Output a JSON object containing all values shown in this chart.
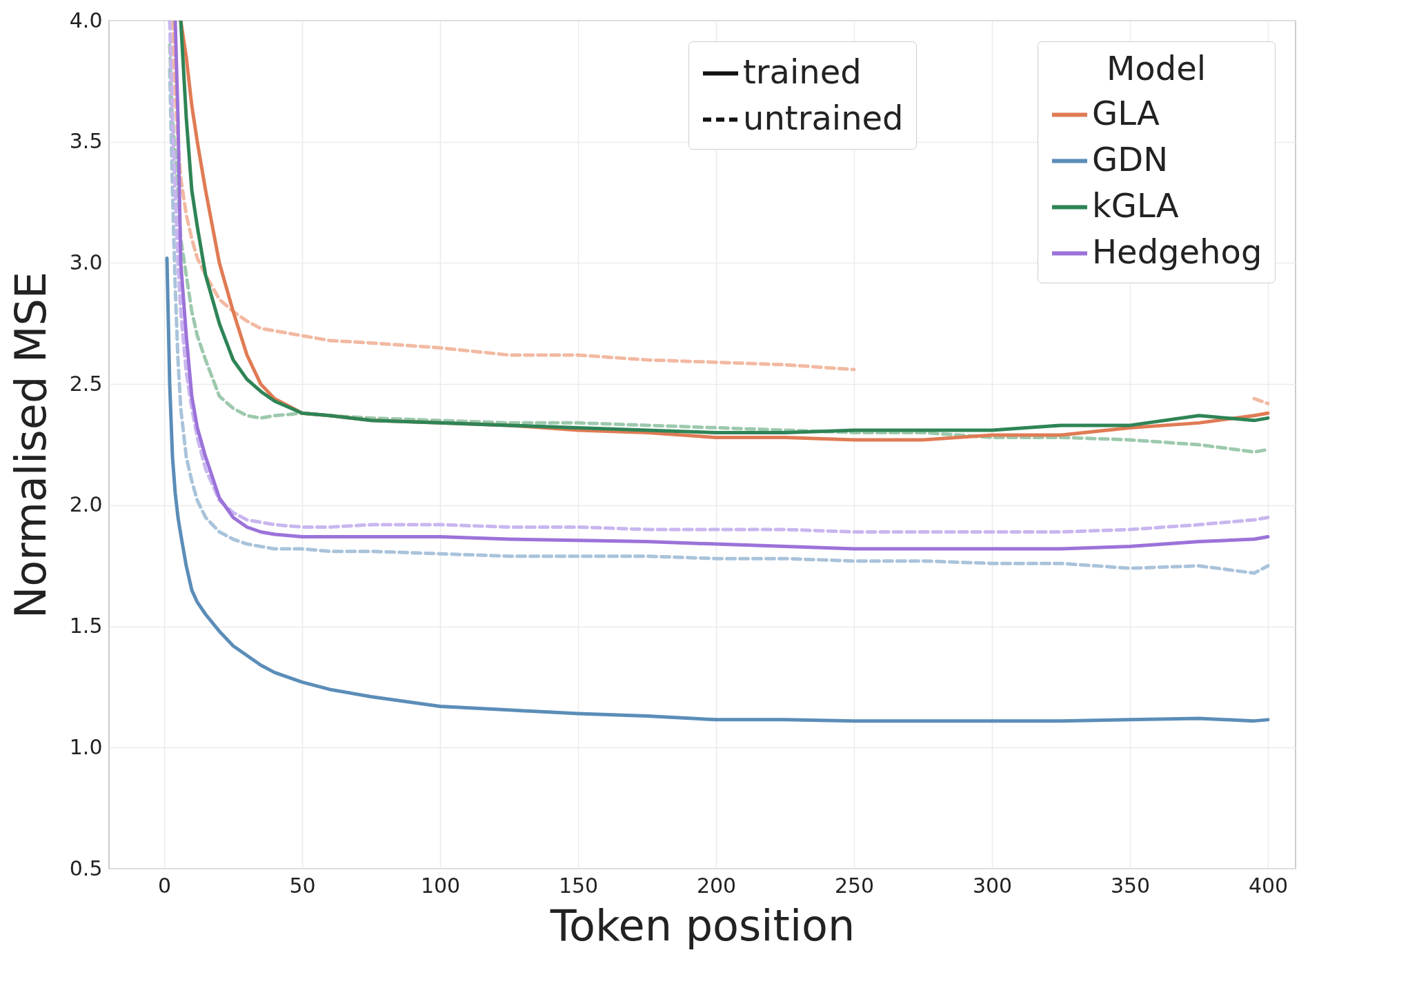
{
  "chart_data": {
    "type": "line",
    "xlabel": "Token position",
    "ylabel": "Normalised MSE",
    "legend_title": "Model",
    "legend": "top right",
    "grid": true,
    "xlim": [
      -20,
      410
    ],
    "ylim": [
      0.5,
      4.0
    ],
    "xticks": [
      0,
      50,
      100,
      150,
      200,
      250,
      300,
      350,
      400
    ],
    "yticks": [
      0.5,
      {
        "value": 1,
        "label": "1.0"
      },
      1.5,
      {
        "value": 2,
        "label": "2.0"
      },
      2.5,
      {
        "value": 3,
        "label": "3.0"
      },
      3.5,
      {
        "value": 4,
        "label": "4.0"
      }
    ],
    "annotations": [
      "trained",
      "untrained"
    ],
    "x": [
      1,
      2,
      3,
      4,
      5,
      6,
      8,
      10,
      12,
      15,
      20,
      25,
      30,
      35,
      40,
      50,
      60,
      75,
      100,
      125,
      150,
      175,
      200,
      225,
      250,
      275,
      300,
      325,
      350,
      375,
      395,
      400
    ],
    "series": [
      {
        "color": "#f2b9a2",
        "line_style": "dashed",
        "values": [
          null,
          null,
          4.0,
          3.7,
          3.5,
          3.35,
          3.2,
          3.1,
          3.02,
          2.95,
          2.85,
          2.8,
          2.76,
          2.73,
          2.72,
          2.7,
          2.68,
          2.67,
          2.65,
          2.62,
          2.62,
          2.6,
          2.59,
          2.58,
          2.56,
          null,
          null,
          null,
          null,
          null,
          2.44,
          2.42
        ]
      },
      {
        "color": "#a9c3da",
        "line_style": "dashed",
        "values": [
          null,
          3.8,
          3.3,
          2.9,
          2.6,
          2.4,
          2.2,
          2.1,
          2.02,
          1.95,
          1.89,
          1.86,
          1.84,
          1.83,
          1.82,
          1.82,
          1.81,
          1.81,
          1.8,
          1.79,
          1.79,
          1.79,
          1.78,
          1.78,
          1.77,
          1.77,
          1.76,
          1.76,
          1.74,
          1.75,
          1.72,
          1.75
        ]
      },
      {
        "color": "#9dc9ad",
        "line_style": "dashed",
        "values": [
          null,
          3.9,
          3.6,
          3.45,
          3.3,
          3.1,
          2.95,
          2.8,
          2.7,
          2.6,
          2.45,
          2.4,
          2.37,
          2.36,
          2.37,
          2.38,
          2.37,
          2.36,
          2.35,
          2.34,
          2.34,
          2.33,
          2.32,
          2.31,
          2.3,
          2.3,
          2.28,
          2.28,
          2.27,
          2.25,
          2.22,
          2.23
        ]
      },
      {
        "color": "#c9b6ef",
        "line_style": "dashed",
        "values": [
          null,
          4.0,
          3.6,
          3.3,
          3.0,
          2.8,
          2.55,
          2.4,
          2.28,
          2.15,
          2.02,
          1.97,
          1.94,
          1.93,
          1.92,
          1.91,
          1.91,
          1.92,
          1.92,
          1.91,
          1.91,
          1.9,
          1.9,
          1.9,
          1.89,
          1.89,
          1.89,
          1.89,
          1.9,
          1.92,
          1.94,
          1.95
        ]
      },
      {
        "name": "GLA",
        "color": "#e07b54",
        "line_style": "solid",
        "values": [
          null,
          null,
          null,
          null,
          null,
          4.0,
          3.85,
          3.65,
          3.5,
          3.3,
          3.0,
          2.8,
          2.62,
          2.5,
          2.44,
          2.38,
          2.37,
          2.35,
          2.34,
          2.33,
          2.31,
          2.3,
          2.28,
          2.28,
          2.27,
          2.27,
          2.29,
          2.29,
          2.32,
          2.34,
          2.37,
          2.38
        ]
      },
      {
        "name": "GDN",
        "color": "#5b8db8",
        "line_style": "solid",
        "values": [
          3.02,
          2.5,
          2.2,
          2.05,
          1.95,
          1.88,
          1.75,
          1.65,
          1.6,
          1.55,
          1.48,
          1.42,
          1.38,
          1.34,
          1.31,
          1.27,
          1.24,
          1.21,
          1.17,
          1.155,
          1.14,
          1.13,
          1.115,
          1.115,
          1.11,
          1.11,
          1.11,
          1.11,
          1.115,
          1.12,
          1.11,
          1.115
        ]
      },
      {
        "name": "kGLA",
        "color": "#2e8456",
        "line_style": "solid",
        "values": [
          null,
          null,
          null,
          null,
          null,
          4.0,
          3.6,
          3.3,
          3.15,
          2.95,
          2.75,
          2.6,
          2.52,
          2.47,
          2.43,
          2.38,
          2.37,
          2.35,
          2.34,
          2.33,
          2.32,
          2.31,
          2.3,
          2.3,
          2.31,
          2.31,
          2.31,
          2.33,
          2.33,
          2.37,
          2.35,
          2.36
        ]
      },
      {
        "name": "Hedgehog",
        "color": "#9b72d9",
        "line_style": "solid",
        "values": [
          null,
          null,
          null,
          4.0,
          3.6,
          3.0,
          2.7,
          2.45,
          2.32,
          2.2,
          2.03,
          1.95,
          1.91,
          1.89,
          1.88,
          1.87,
          1.87,
          1.87,
          1.87,
          1.86,
          1.855,
          1.85,
          1.84,
          1.83,
          1.82,
          1.82,
          1.82,
          1.82,
          1.83,
          1.85,
          1.86,
          1.87
        ]
      }
    ]
  }
}
